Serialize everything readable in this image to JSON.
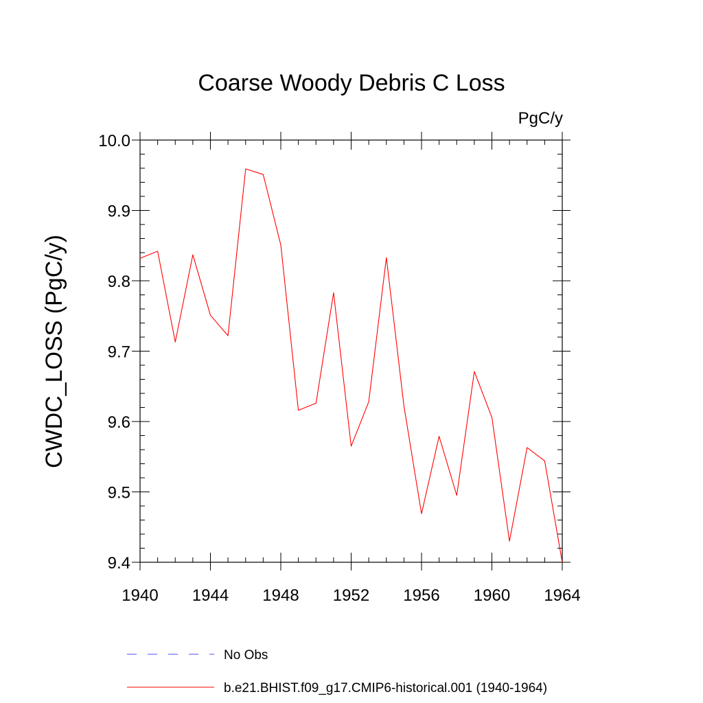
{
  "chart_data": {
    "type": "line",
    "title": "Coarse Woody Debris C Loss",
    "units": "PgC/y",
    "xlabel": "",
    "ylabel": "CWDC_LOSS  (PgC/y)",
    "xlim": [
      1940,
      1964
    ],
    "ylim": [
      9.4,
      10.0
    ],
    "x_ticks": [
      1940,
      1944,
      1948,
      1952,
      1956,
      1960,
      1964
    ],
    "y_ticks": [
      9.4,
      9.5,
      9.6,
      9.7,
      9.8,
      9.9,
      10.0
    ],
    "y_tick_labels": [
      "9.4",
      "9.5",
      "9.6",
      "9.7",
      "9.8",
      "9.9",
      "10.0"
    ],
    "grid": false,
    "legend_position": "bottom",
    "series": [
      {
        "name": "b.e21.BHIST.f09_g17.CMIP6-historical.001 (1940-1964)",
        "color": "#ff0000",
        "style": "solid",
        "x": [
          1940,
          1941,
          1942,
          1943,
          1944,
          1945,
          1946,
          1947,
          1948,
          1949,
          1950,
          1951,
          1952,
          1953,
          1954,
          1955,
          1956,
          1957,
          1958,
          1959,
          1960,
          1961,
          1962,
          1963,
          1964
        ],
        "y": [
          9.832,
          9.842,
          9.713,
          9.837,
          9.751,
          9.722,
          9.959,
          9.951,
          9.851,
          9.616,
          9.626,
          9.783,
          9.565,
          9.628,
          9.833,
          9.622,
          9.469,
          9.579,
          9.495,
          9.671,
          9.606,
          9.43,
          9.563,
          9.544,
          9.4
        ]
      }
    ],
    "legend": [
      {
        "label": "No Obs",
        "color": "#4a4aff",
        "style": "dashed"
      },
      {
        "label": "b.e21.BHIST.f09_g17.CMIP6-historical.001 (1940-1964)",
        "color": "#ff0000",
        "style": "solid"
      }
    ]
  }
}
